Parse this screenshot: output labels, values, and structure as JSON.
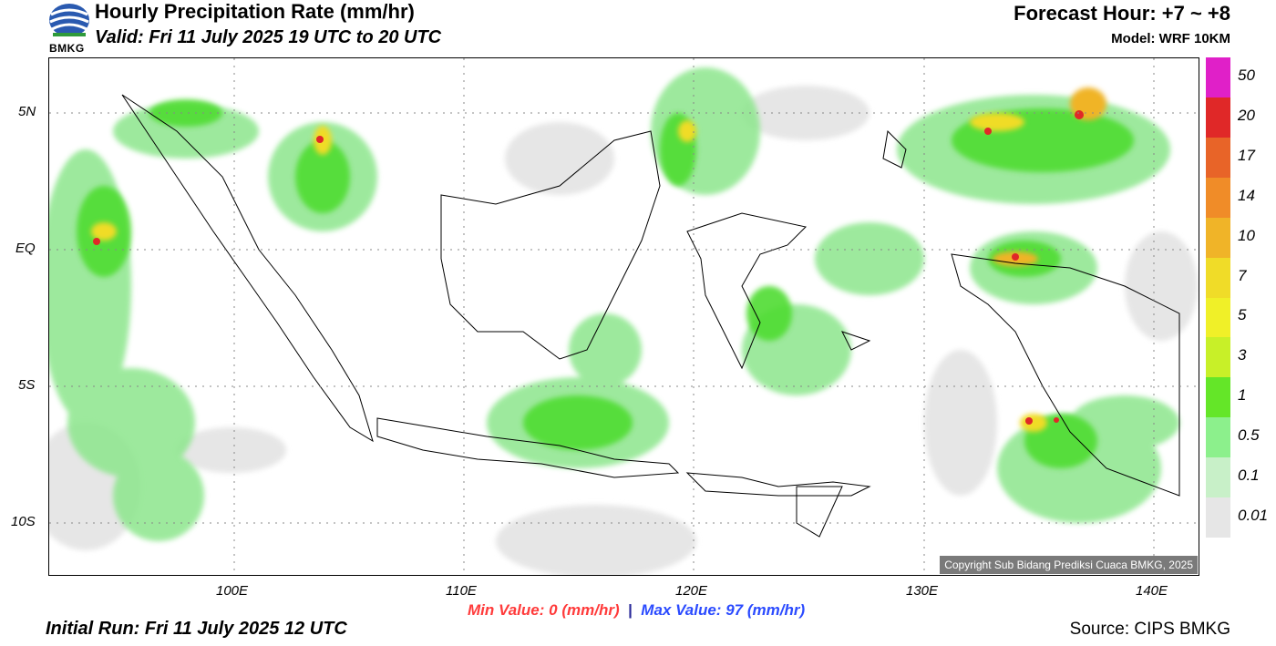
{
  "header": {
    "title": "Hourly Precipitation Rate",
    "title_unit": "(mm/hr)",
    "valid": "Valid: Fri 11 July 2025 19 UTC to 20 UTC",
    "forecast_hour": "Forecast Hour: +7 ~ +8",
    "model": "Model: WRF 10KM"
  },
  "logo": {
    "text": "BMKG"
  },
  "map": {
    "lat_labels": [
      "5N",
      "EQ",
      "5S",
      "10S"
    ],
    "lon_labels": [
      "100E",
      "110E",
      "120E",
      "130E",
      "140E"
    ],
    "copyright": "Copyright Sub Bidang Prediksi Cuaca BMKG, 2025"
  },
  "legend": {
    "labels": [
      "50",
      "20",
      "17",
      "14",
      "10",
      "7",
      "5",
      "3",
      "1",
      "0.5",
      "0.1",
      "0.01"
    ],
    "colors": [
      "#e020c8",
      "#e02828",
      "#e86428",
      "#f08c28",
      "#f0b428",
      "#f0dc28",
      "#f0f028",
      "#c8f028",
      "#64e628",
      "#8cf08c",
      "#c8f0c8",
      "#e6e6e6"
    ]
  },
  "footer": {
    "min_label": "Min Value:",
    "min_value": "0",
    "max_label": "Max Value:",
    "max_value": "97",
    "unit": "(mm/hr)",
    "initial_run": "Initial Run: Fri 11 July 2025 12 UTC",
    "source": "Source: CIPS BMKG"
  }
}
